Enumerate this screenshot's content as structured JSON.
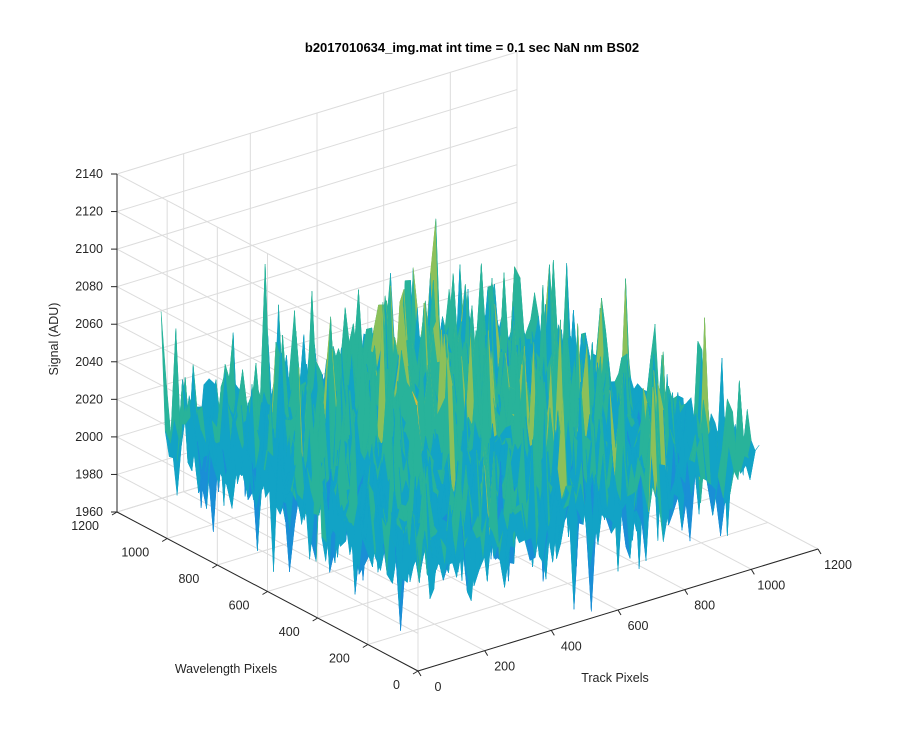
{
  "chart_data": {
    "type": "surface",
    "title": "b2017010634_img.mat int time = 0.1 sec  NaN nm BS02",
    "xlabel": "Track Pixels",
    "ylabel": "Wavelength Pixels",
    "zlabel": "Signal (ADU)",
    "xlim": [
      0,
      1200
    ],
    "ylim": [
      0,
      1200
    ],
    "zlim": [
      1960,
      2140
    ],
    "xticks": [
      "0",
      "200",
      "400",
      "600",
      "800",
      "1000",
      "1200"
    ],
    "yticks": [
      "0",
      "200",
      "400",
      "600",
      "800",
      "1000",
      "1200"
    ],
    "zticks": [
      "1960",
      "1980",
      "2000",
      "2020",
      "2040",
      "2060",
      "2080",
      "2100",
      "2120",
      "2140"
    ],
    "grid": true,
    "colormap": "parula",
    "surface": {
      "track_range": [
        0,
        1024
      ],
      "wavelength_range": [
        0,
        1024
      ],
      "mean_signal": 2015,
      "typical_range": [
        1975,
        2070
      ],
      "peak_signal": 2115,
      "colors": [
        "#0d5fd1",
        "#1a8fd6",
        "#12a3c6",
        "#28b39a",
        "#8cc05a",
        "#d8ba3a"
      ]
    }
  }
}
